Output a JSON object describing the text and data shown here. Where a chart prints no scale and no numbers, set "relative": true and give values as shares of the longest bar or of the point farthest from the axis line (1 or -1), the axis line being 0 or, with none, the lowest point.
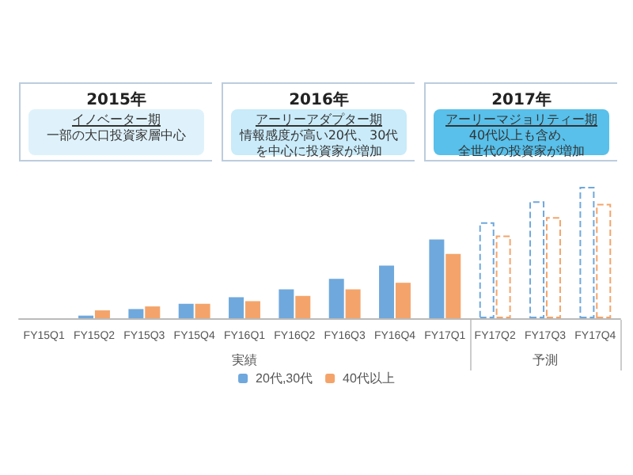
{
  "chart_data": {
    "type": "bar",
    "relative": true,
    "categories": [
      "FY15Q1",
      "FY15Q2",
      "FY15Q3",
      "FY15Q4",
      "FY16Q1",
      "FY16Q2",
      "FY16Q3",
      "FY16Q4",
      "FY17Q1",
      "FY17Q2",
      "FY17Q3",
      "FY17Q4"
    ],
    "series": [
      {
        "name": "20代,30代",
        "color": "#6fa8dc",
        "values": [
          0,
          0.02,
          0.07,
          0.11,
          0.16,
          0.22,
          0.3,
          0.4,
          0.6,
          null,
          null,
          null
        ]
      },
      {
        "name": "40代以上",
        "color": "#f4a46a",
        "values": [
          0,
          0.06,
          0.09,
          0.11,
          0.13,
          0.17,
          0.22,
          0.27,
          0.49,
          null,
          null,
          null
        ]
      },
      {
        "color": "#6fa8dc",
        "line_style": "dashed",
        "values": [
          null,
          null,
          null,
          null,
          null,
          null,
          null,
          null,
          null,
          0.73,
          0.89,
          1
        ]
      },
      {
        "color": "#f4a46a",
        "line_style": "dashed",
        "values": [
          null,
          null,
          null,
          null,
          null,
          null,
          null,
          null,
          null,
          0.63,
          0.77,
          0.87
        ]
      }
    ],
    "legend": "bottom",
    "grid": false,
    "annotations": [
      "2015年",
      "イノベーター期",
      "一部の大口投資家層中心",
      "2016年",
      "アーリーアダプター期",
      "情報感度が高い20代、30代",
      "を中心に投資家が増加",
      "2017年",
      "アーリーマジョリティー期",
      "40代以上も含め、",
      "全世代の投資家が増加",
      "実績",
      "予測"
    ]
  }
}
